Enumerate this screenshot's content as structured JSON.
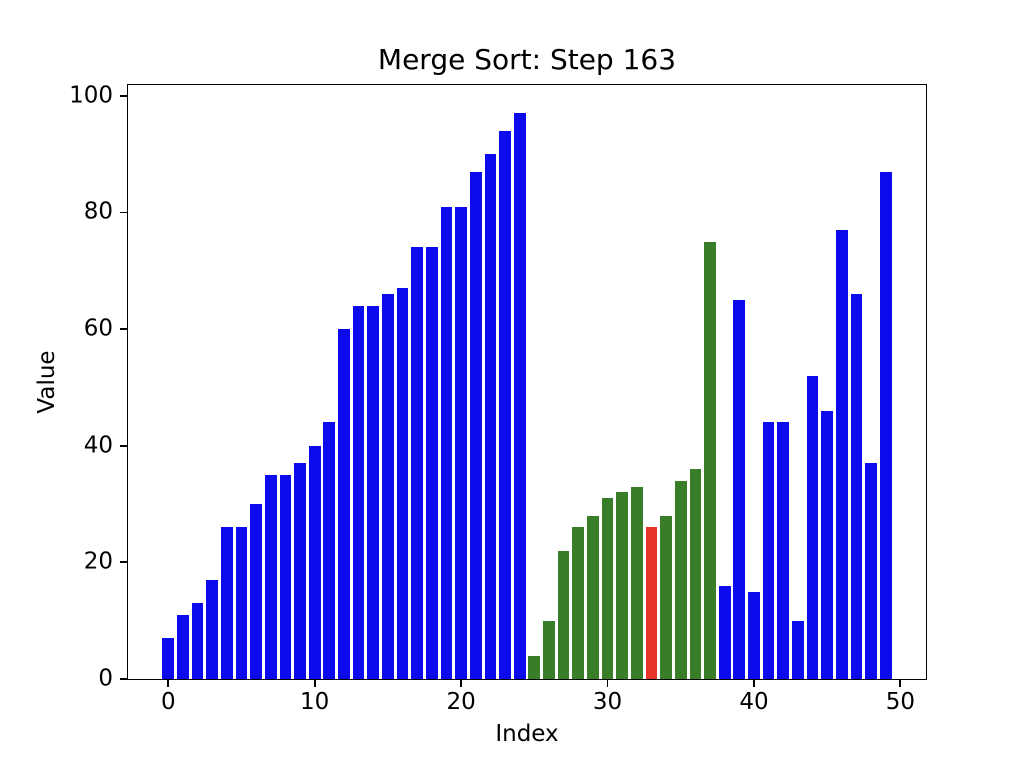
{
  "chart_data": {
    "type": "bar",
    "title": "Merge Sort: Step 163",
    "xlabel": "Index",
    "ylabel": "Value",
    "values": [
      7,
      11,
      13,
      17,
      26,
      26,
      30,
      35,
      35,
      37,
      40,
      44,
      60,
      64,
      64,
      66,
      67,
      74,
      74,
      81,
      81,
      87,
      90,
      94,
      97,
      4,
      10,
      22,
      26,
      28,
      31,
      32,
      33,
      26,
      28,
      34,
      36,
      75,
      16,
      65,
      15,
      44,
      44,
      10,
      52,
      46,
      77,
      66,
      37,
      87
    ],
    "states": [
      "b",
      "b",
      "b",
      "b",
      "b",
      "b",
      "b",
      "b",
      "b",
      "b",
      "b",
      "b",
      "b",
      "b",
      "b",
      "b",
      "b",
      "b",
      "b",
      "b",
      "b",
      "b",
      "b",
      "b",
      "b",
      "g",
      "g",
      "g",
      "g",
      "g",
      "g",
      "g",
      "g",
      "r",
      "g",
      "g",
      "g",
      "g",
      "b",
      "b",
      "b",
      "b",
      "b",
      "b",
      "b",
      "b",
      "b",
      "b",
      "b",
      "b"
    ],
    "colors": {
      "b": "#0b0bee",
      "g": "#3a7d28",
      "r": "#e5342a"
    },
    "highlight": {
      "merge_region_start": 25,
      "merge_region_end": 37,
      "current_index": 33
    },
    "x_ticks": [
      0,
      10,
      20,
      30,
      40,
      50
    ],
    "y_ticks": [
      0,
      20,
      40,
      60,
      80,
      100
    ],
    "xlim": [
      -2.75,
      51.75
    ],
    "ylim": [
      0,
      101.85
    ],
    "bar_width": 0.8,
    "grid": false,
    "legend": null,
    "axis_color": "#000000",
    "background_color": "#ffffff"
  }
}
